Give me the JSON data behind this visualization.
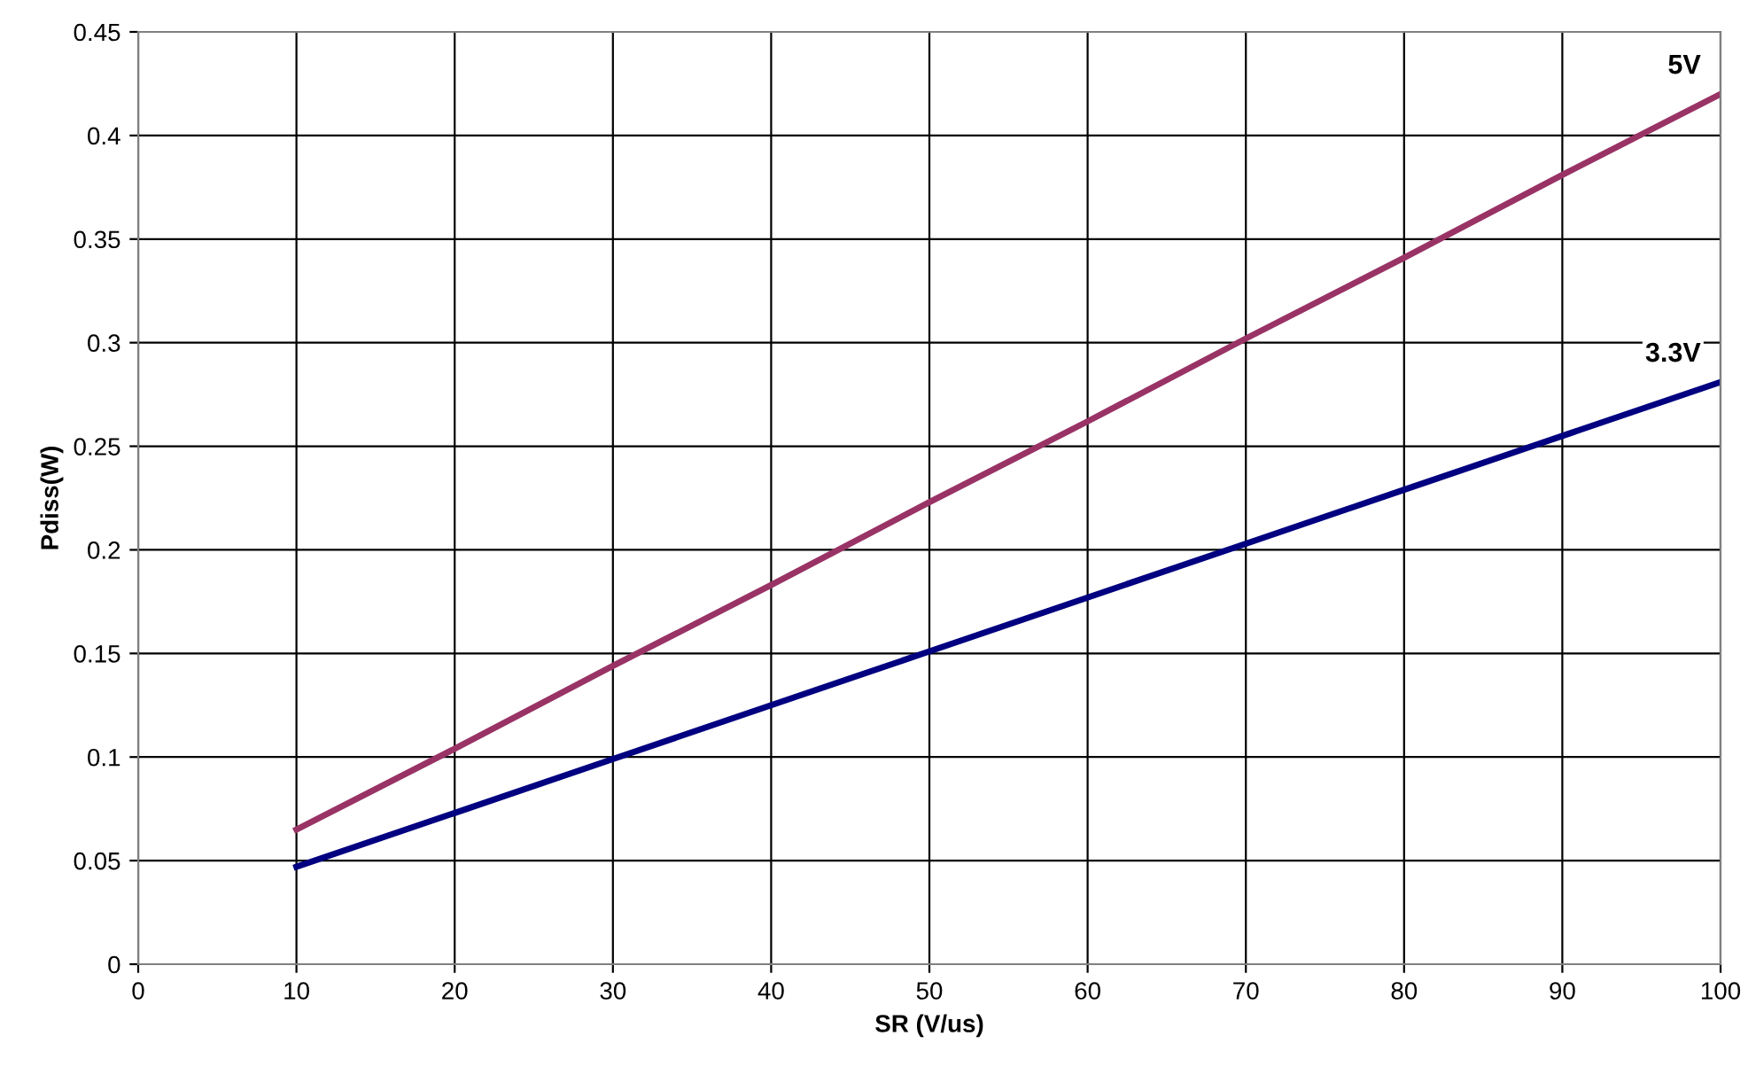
{
  "chart_data": {
    "type": "line",
    "xlabel": "SR (V/us)",
    "ylabel": "Pdiss(W)",
    "x": [
      10,
      20,
      30,
      40,
      50,
      60,
      70,
      80,
      90,
      100
    ],
    "series": [
      {
        "name": "5V",
        "color": "#993366",
        "values": [
          0.065,
          0.104,
          0.144,
          0.183,
          0.223,
          0.262,
          0.302,
          0.341,
          0.381,
          0.42
        ]
      },
      {
        "name": "3.3V",
        "color": "#000080",
        "values": [
          0.047,
          0.073,
          0.099,
          0.125,
          0.151,
          0.177,
          0.203,
          0.229,
          0.255,
          0.281
        ]
      }
    ],
    "xlim": [
      0,
      100
    ],
    "xticks": [
      0,
      10,
      20,
      30,
      40,
      50,
      60,
      70,
      80,
      90,
      100
    ],
    "ylim": [
      0,
      0.45
    ],
    "yticks": [
      0,
      0.05,
      0.1,
      0.15,
      0.2,
      0.25,
      0.3,
      0.35,
      0.4,
      0.45
    ],
    "grid": true,
    "legend": false,
    "marker": "none",
    "line_style": "solid"
  }
}
